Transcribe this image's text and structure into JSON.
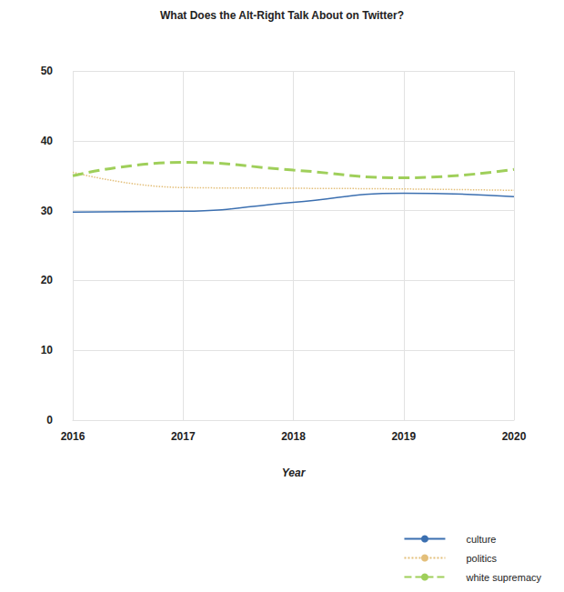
{
  "chart_data": {
    "type": "line",
    "title": "What Does the Alt-Right Talk About on Twitter?",
    "x_label": "Year",
    "categories": [
      "2016",
      "2017",
      "2018",
      "2019",
      "2020"
    ],
    "series": [
      {
        "name": "culture",
        "color": "#3b6fb0",
        "line_style": "solid",
        "values": [
          29.8,
          29.9,
          31.2,
          32.5,
          32.0
        ]
      },
      {
        "name": "politics",
        "color": "#e3bf7a",
        "line_style": "dotted",
        "values": [
          35.5,
          33.3,
          33.2,
          33.1,
          32.9
        ]
      },
      {
        "name": "white supremacy",
        "color": "#9fcf5a",
        "line_style": "dashed",
        "values": [
          35.0,
          36.9,
          35.8,
          34.7,
          35.9
        ]
      }
    ],
    "ylim": [
      0,
      50
    ],
    "yticks": [
      0,
      10,
      20,
      30,
      40,
      50
    ],
    "grid": true,
    "legend": "bottom-right"
  }
}
